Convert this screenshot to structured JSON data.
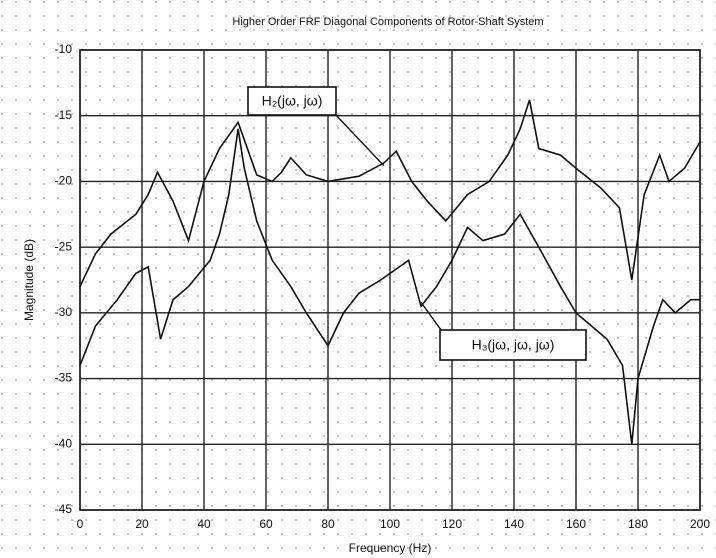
{
  "chart_data": {
    "type": "line",
    "title": "Higher Order FRF Diagonal Components of Rotor-Shaft System",
    "x_label": "Frequency (Hz)",
    "y_label": "Magnitude (dB)",
    "series": [
      {
        "name": "H₂(jω, jω)",
        "color": "#111111",
        "x": [
          0,
          5,
          10,
          18,
          22,
          25,
          30,
          35,
          40,
          45,
          51,
          57,
          62,
          65,
          68,
          73,
          80,
          90,
          98,
          102,
          107,
          112,
          118,
          125,
          132,
          138,
          142,
          145,
          148,
          155,
          160,
          168,
          174,
          178,
          182,
          187,
          190,
          195,
          200
        ],
        "values": [
          -28,
          -25.5,
          -24,
          -22.5,
          -21,
          -19.3,
          -21.5,
          -24.5,
          -20,
          -17.5,
          -15.5,
          -19.5,
          -20,
          -19.3,
          -18.2,
          -19.5,
          -20,
          -19.6,
          -18.6,
          -17.7,
          -20,
          -21.5,
          -23,
          -21,
          -20,
          -18,
          -16,
          -13.8,
          -17.5,
          -18,
          -19,
          -20.5,
          -22,
          -27.5,
          -21,
          -18,
          -20,
          -19,
          -17
        ]
      },
      {
        "name": "H₃(jω, jω, jω)",
        "color": "#111111",
        "x": [
          0,
          5,
          12,
          18,
          22,
          26,
          30,
          35,
          42,
          45,
          48,
          51,
          53,
          57,
          62,
          68,
          73,
          80,
          85,
          90,
          97,
          103,
          106,
          110,
          115,
          120,
          125,
          130,
          137,
          142,
          148,
          155,
          160,
          165,
          170,
          175,
          178,
          180,
          185,
          188,
          192,
          197,
          200
        ],
        "values": [
          -34,
          -31,
          -29,
          -27,
          -26.5,
          -32,
          -29,
          -28,
          -26,
          -24,
          -21,
          -16,
          -19,
          -23,
          -26,
          -28,
          -30,
          -32.5,
          -30,
          -28.5,
          -27.5,
          -26.5,
          -26,
          -29.5,
          -28,
          -26,
          -23.5,
          -24.5,
          -24,
          -22.5,
          -25,
          -28,
          -30,
          -31,
          -32,
          -34,
          -40,
          -35,
          -31,
          -29,
          -30,
          -29,
          -29
        ]
      }
    ],
    "xlim": [
      0,
      200
    ],
    "xticks": [
      0,
      20,
      40,
      60,
      80,
      100,
      120,
      140,
      160,
      180,
      200
    ],
    "ylim": [
      -45,
      -10
    ],
    "yticks": [
      -45,
      -40,
      -35,
      -30,
      -25,
      -20,
      -15,
      -10
    ],
    "grid": true
  }
}
